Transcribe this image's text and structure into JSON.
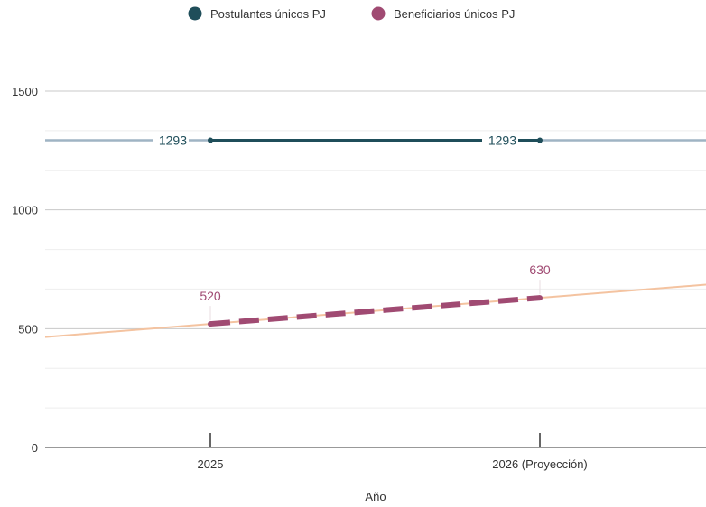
{
  "chart_data": {
    "type": "line",
    "xlabel": "Año",
    "ylabel": "",
    "categories": [
      "2025",
      "2026 (Proyección)"
    ],
    "ylim": [
      0,
      1500
    ],
    "yticks": [
      0,
      500,
      1000,
      1500
    ],
    "minor_gridlines": [
      166.7,
      333.3,
      666.7,
      833.3,
      1166.7,
      1333.3
    ],
    "grid": true,
    "legend_position": "top-center",
    "series": [
      {
        "name": "Postulantes únicos PJ",
        "values": [
          1293,
          1293
        ],
        "labels": [
          "1293",
          "1293"
        ],
        "color": "#1f4e5a",
        "line_style": "solid",
        "trendline_color": "#9fb4c4",
        "trendline": [
          1293,
          1293
        ]
      },
      {
        "name": "Beneficiarios únicos PJ",
        "values": [
          520,
          630
        ],
        "labels": [
          "520",
          "630"
        ],
        "color": "#a04a72",
        "line_style": "dashed",
        "trendline_color": "#f4c3a0",
        "trendline": [
          520,
          630
        ]
      }
    ]
  }
}
